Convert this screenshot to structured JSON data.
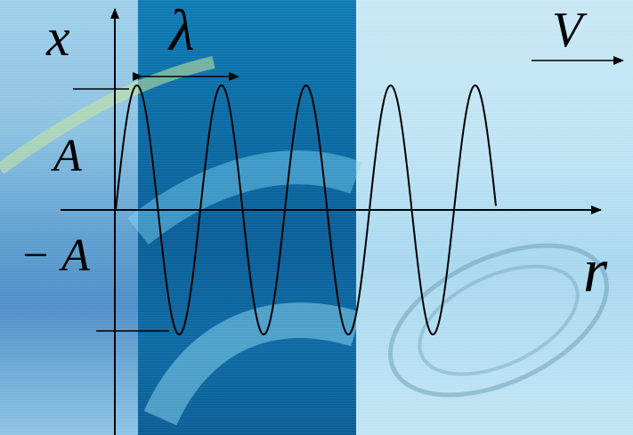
{
  "labels": {
    "x_axis": "x",
    "r_axis": "r",
    "wavelength": "λ",
    "velocity": "V",
    "amplitude": "A",
    "neg_amplitude": "− A"
  },
  "wave": {
    "type": "sinusoid",
    "cycles": 4.5
  },
  "colors": {
    "wave": "#000000",
    "axes": "#000000",
    "panel_mid": "#0b6fa8",
    "panel_right": "#c2e5f5"
  }
}
